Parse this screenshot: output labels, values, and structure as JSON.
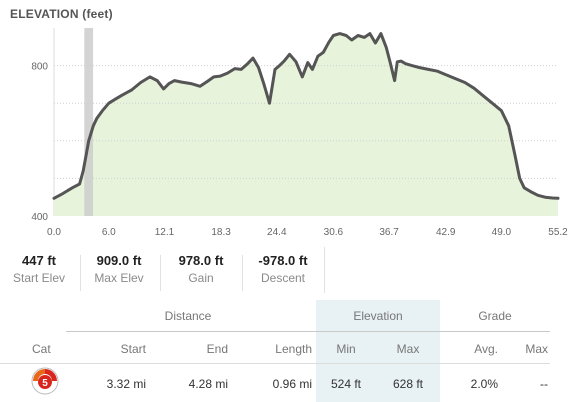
{
  "chart_data": {
    "type": "area",
    "title": "ELEVATION",
    "title_unit": "(feet)",
    "x_ticks": [
      "0.0",
      "6.0",
      "12.1",
      "18.3",
      "24.4",
      "30.6",
      "36.7",
      "42.9",
      "49.0",
      "55.2"
    ],
    "y_ticks": [
      "400",
      "800"
    ],
    "xlim": [
      0,
      55.2
    ],
    "ylim": [
      400,
      900
    ],
    "fill_color": "#e8f3dc",
    "line_color": "#555555",
    "highlight_color": "#cccccc",
    "highlight_range": [
      3.32,
      4.28
    ],
    "grid": "dotted horizontal",
    "x": [
      0.0,
      1.0,
      2.0,
      2.8,
      3.2,
      3.5,
      3.8,
      4.3,
      4.7,
      5.3,
      6.0,
      6.8,
      7.5,
      8.5,
      9.5,
      10.5,
      11.3,
      12.0,
      12.6,
      13.2,
      14.0,
      15.0,
      16.0,
      16.8,
      17.5,
      18.2,
      19.0,
      19.8,
      20.5,
      21.2,
      21.8,
      22.4,
      23.0,
      23.6,
      24.2,
      24.7,
      25.2,
      25.8,
      26.5,
      27.2,
      27.8,
      28.3,
      28.9,
      29.5,
      30.1,
      30.6,
      31.3,
      32.0,
      32.6,
      33.3,
      34.0,
      34.6,
      35.2,
      35.8,
      36.4,
      36.8,
      37.3,
      37.6,
      38.0,
      38.5,
      39.2,
      40.0,
      41.0,
      42.0,
      43.0,
      44.0,
      45.0,
      46.0,
      47.0,
      48.0,
      49.0,
      49.8,
      50.5,
      51.0,
      51.5,
      52.2,
      53.0,
      53.8,
      54.6,
      55.2
    ],
    "y": [
      447,
      460,
      475,
      485,
      520,
      560,
      600,
      640,
      660,
      680,
      700,
      712,
      722,
      735,
      755,
      770,
      760,
      738,
      752,
      760,
      756,
      752,
      745,
      758,
      770,
      772,
      780,
      792,
      790,
      805,
      820,
      795,
      750,
      700,
      790,
      800,
      812,
      830,
      810,
      770,
      808,
      790,
      825,
      835,
      862,
      880,
      885,
      880,
      868,
      880,
      875,
      885,
      860,
      885,
      848,
      810,
      760,
      810,
      812,
      805,
      800,
      795,
      790,
      785,
      775,
      765,
      755,
      740,
      720,
      700,
      680,
      640,
      560,
      500,
      475,
      465,
      455,
      450,
      448,
      447
    ]
  },
  "stats": [
    {
      "value": "447 ft",
      "label": "Start Elev"
    },
    {
      "value": "909.0 ft",
      "label": "Max Elev"
    },
    {
      "value": "978.0 ft",
      "label": "Gain"
    },
    {
      "value": "-978.0 ft",
      "label": "Descent"
    }
  ],
  "table": {
    "groups": {
      "distance": "Distance",
      "elevation": "Elevation",
      "grade": "Grade"
    },
    "columns": {
      "cat": "Cat",
      "start": "Start",
      "end": "End",
      "length": "Length",
      "min": "Min",
      "max": "Max",
      "avg": "Avg.",
      "grade_max": "Max"
    },
    "row": {
      "cat": "5",
      "start": "3.32 mi",
      "end": "4.28 mi",
      "length": "0.96 mi",
      "min": "524 ft",
      "max": "628 ft",
      "avg": "2.0%",
      "grade_max": "--"
    },
    "badge_color": "#d9261c"
  }
}
